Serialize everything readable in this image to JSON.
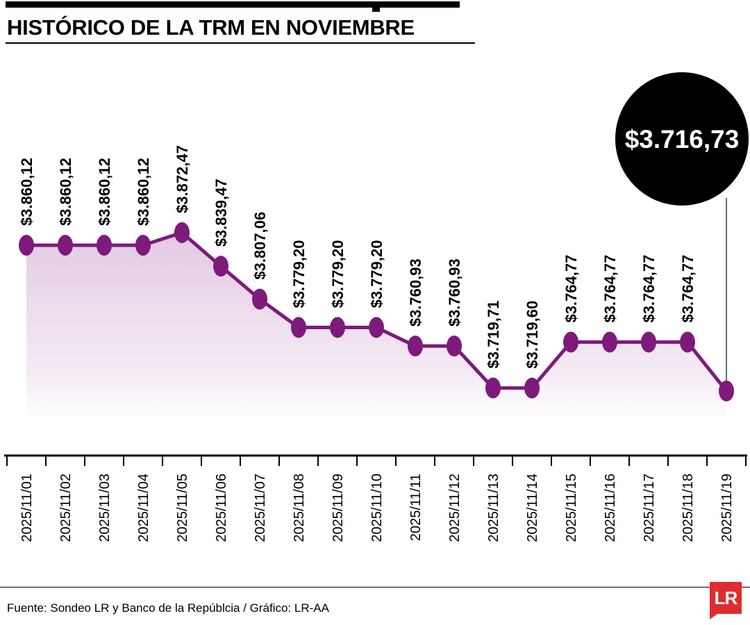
{
  "header": {
    "title": "HISTÓRICO DE LA TRM EN NOVIEMBRE"
  },
  "chart_data": {
    "type": "line",
    "title": "HISTÓRICO DE LA TRM EN NOVIEMBRE",
    "x": [
      "2025/11/01",
      "2025/11/02",
      "2025/11/03",
      "2025/11/04",
      "2025/11/05",
      "2025/11/06",
      "2025/11/07",
      "2025/11/08",
      "2025/11/09",
      "2025/11/10",
      "2025/11/11",
      "2025/11/12",
      "2025/11/13",
      "2025/11/14",
      "2025/11/15",
      "2025/11/16",
      "2025/11/17",
      "2025/11/18",
      "2025/11/19"
    ],
    "values": [
      3860.12,
      3860.12,
      3860.12,
      3860.12,
      3872.47,
      3839.47,
      3807.06,
      3779.2,
      3779.2,
      3779.2,
      3760.93,
      3760.93,
      3719.71,
      3719.6,
      3764.77,
      3764.77,
      3764.77,
      3764.77,
      3716.73
    ],
    "labels": [
      "$3.860,12",
      "$3.860,12",
      "$3.860,12",
      "$3.860,12",
      "$3.872,47",
      "$3.839,47",
      "$3.807,06",
      "$3.779,20",
      "$3.779,20",
      "$3.779,20",
      "$3.760,93",
      "$3.760,93",
      "$3.719,71",
      "$3.719,60",
      "$3.764,77",
      "$3.764,77",
      "$3.764,77",
      "$3.764,77",
      "$3.716,73"
    ],
    "highlight": {
      "index": 18,
      "date": "2025/11/19",
      "label": "$3.716,73"
    },
    "xlabel": "",
    "ylabel": "",
    "ylim": [
      3716.73,
      3872.47
    ],
    "grid": false,
    "legend": "none",
    "line_color": "#7d1a7b",
    "marker_color": "#7d1a7b",
    "area_top_color": "#e2c9e3",
    "area_bottom_color": "#ffffff",
    "callout_bg": "#000000",
    "callout_text_color": "#ffffff",
    "axis_color": "#000000"
  },
  "footer": {
    "source": "Fuente: Sondeo LR y Banco de la Repúblcia / Gráfico: LR-AA",
    "logo_text": "LR",
    "logo_color": "#e02b30"
  }
}
